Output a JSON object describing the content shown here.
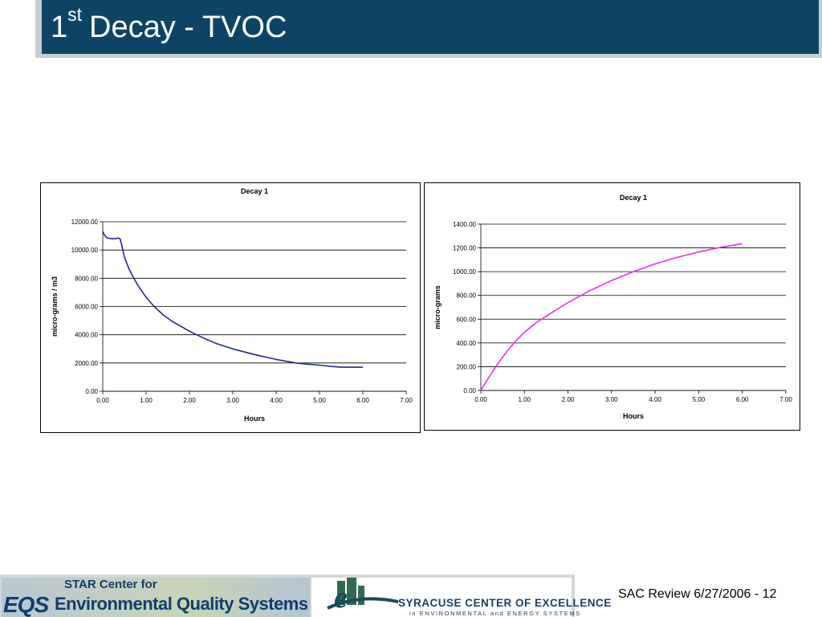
{
  "slide": {
    "title_main": "1",
    "title_sup": "st",
    "title_rest": "Decay - TVOC",
    "footer": "SAC Review 6/27/2006 - 12"
  },
  "logos": {
    "eqs_line1": "STAR Center for",
    "eqs_mark": "EQS",
    "eqs_line2": "Environmental Quality Systems",
    "sce_mark": "e",
    "sce_name": "SYRACUSE CENTER OF EXCELLENCE",
    "sce_sub": "in ENVIRONMENTAL and ENERGY SYSTEMS"
  },
  "chart_data": [
    {
      "type": "line",
      "title": "Decay 1",
      "xlabel": "Hours",
      "ylabel": "micro-grams / m3",
      "xlim": [
        0,
        7
      ],
      "ylim": [
        0,
        12000
      ],
      "xticks": [
        "0.00",
        "1.00",
        "2.00",
        "3.00",
        "4.00",
        "5.00",
        "6.00",
        "7.00"
      ],
      "yticks": [
        "0.00",
        "2000.00",
        "4000.00",
        "6000.00",
        "8000.00",
        "10000.00",
        "12000.00"
      ],
      "grid": true,
      "series": [
        {
          "color": "#1f2a8c",
          "x": [
            0.0,
            0.05,
            0.1,
            0.2,
            0.3,
            0.35,
            0.4,
            0.45,
            0.5,
            0.6,
            0.7,
            0.8,
            0.9,
            1.0,
            1.2,
            1.4,
            1.6,
            1.8,
            2.0,
            2.3,
            2.6,
            3.0,
            3.5,
            4.0,
            4.5,
            5.0,
            5.3,
            5.5,
            6.0
          ],
          "y": [
            11300,
            11000,
            10850,
            10800,
            10800,
            10850,
            10800,
            10200,
            9500,
            8700,
            8100,
            7550,
            7100,
            6650,
            5950,
            5400,
            4950,
            4600,
            4250,
            3800,
            3400,
            3000,
            2600,
            2250,
            1980,
            1850,
            1750,
            1700,
            1700
          ]
        }
      ]
    },
    {
      "type": "line",
      "title": "Decay 1",
      "xlabel": "Hours",
      "ylabel": "micro-grams",
      "xlim": [
        0,
        7
      ],
      "ylim": [
        0,
        1400
      ],
      "xticks": [
        "0.00",
        "1.00",
        "2.00",
        "3.00",
        "4.00",
        "5.00",
        "6.00",
        "7.00"
      ],
      "yticks": [
        "0.00",
        "200.00",
        "400.00",
        "600.00",
        "800.00",
        "1000.00",
        "1200.00",
        "1400.00"
      ],
      "grid": true,
      "series": [
        {
          "color": "#e830e8",
          "x": [
            0.0,
            0.1,
            0.2,
            0.4,
            0.6,
            0.8,
            1.0,
            1.25,
            1.5,
            2.0,
            2.5,
            3.0,
            3.5,
            4.0,
            4.5,
            5.0,
            5.5,
            6.0
          ],
          "y": [
            0,
            60,
            120,
            230,
            330,
            415,
            490,
            565,
            625,
            740,
            840,
            925,
            1000,
            1065,
            1120,
            1165,
            1205,
            1235
          ]
        }
      ]
    }
  ]
}
